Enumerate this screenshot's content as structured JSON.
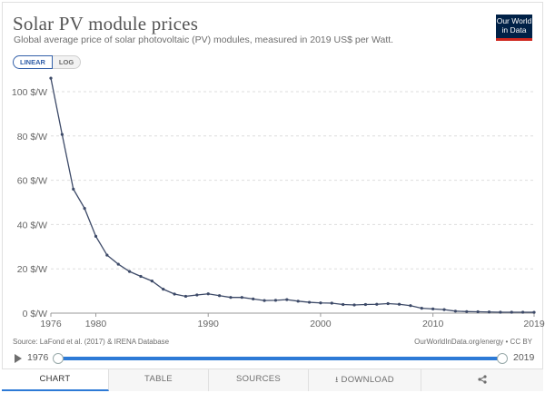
{
  "header": {
    "title": "Solar PV module prices",
    "subtitle": "Global average price of solar photovoltaic (PV) modules, measured in 2019 US$ per Watt.",
    "logo_line1": "Our World",
    "logo_line2": "in Data"
  },
  "scale_toggle": {
    "linear": "LINEAR",
    "log": "LOG",
    "selected": "LINEAR"
  },
  "footer": {
    "source": "Source: LaFond et al. (2017) & IRENA Database",
    "credit": "OurWorldInData.org/energy • CC BY"
  },
  "timeline": {
    "start": "1976",
    "end": "2019"
  },
  "tabs": {
    "chart": "CHART",
    "table": "TABLE",
    "sources": "SOURCES",
    "download": "DOWNLOAD"
  },
  "colors": {
    "line": "#3d4a68",
    "grid": "#dddddd",
    "accent": "#2d7ad6",
    "logo_bg": "#002147",
    "logo_bar": "#ce261e"
  },
  "icons": {
    "play": "play-icon",
    "download": "download-icon",
    "share": "share-icon"
  },
  "chart_data": {
    "type": "line",
    "title": "Solar PV module prices",
    "xlabel": "",
    "ylabel": "",
    "xlim": [
      1976,
      2019
    ],
    "ylim": [
      0,
      100
    ],
    "y_ticks": [
      0,
      20,
      40,
      60,
      80,
      100
    ],
    "y_tick_labels": [
      "0 $/W",
      "20 $/W",
      "40 $/W",
      "60 $/W",
      "80 $/W",
      "100 $/W"
    ],
    "x_ticks": [
      1976,
      1980,
      1990,
      2000,
      2010,
      2019
    ],
    "x_tick_labels": [
      "1976",
      "1980",
      "1990",
      "2000",
      "2010",
      "2019"
    ],
    "series": [
      {
        "name": "Solar PV module price",
        "x": [
          1976,
          1977,
          1978,
          1979,
          1980,
          1981,
          1982,
          1983,
          1984,
          1985,
          1986,
          1987,
          1988,
          1989,
          1990,
          1991,
          1992,
          1993,
          1994,
          1995,
          1996,
          1997,
          1998,
          1999,
          2000,
          2001,
          2002,
          2003,
          2004,
          2005,
          2006,
          2007,
          2008,
          2009,
          2010,
          2011,
          2012,
          2013,
          2014,
          2015,
          2016,
          2017,
          2018,
          2019
        ],
        "values": [
          106.1,
          80.7,
          56.0,
          47.3,
          34.7,
          26.2,
          22.1,
          18.8,
          16.6,
          14.5,
          10.8,
          8.6,
          7.6,
          8.2,
          8.7,
          7.9,
          7.1,
          7.1,
          6.4,
          5.7,
          5.8,
          6.1,
          5.4,
          4.9,
          4.6,
          4.5,
          3.9,
          3.7,
          3.9,
          4.0,
          4.3,
          4.0,
          3.4,
          2.2,
          1.9,
          1.6,
          0.9,
          0.7,
          0.6,
          0.5,
          0.4,
          0.4,
          0.4,
          0.38
        ]
      }
    ]
  }
}
